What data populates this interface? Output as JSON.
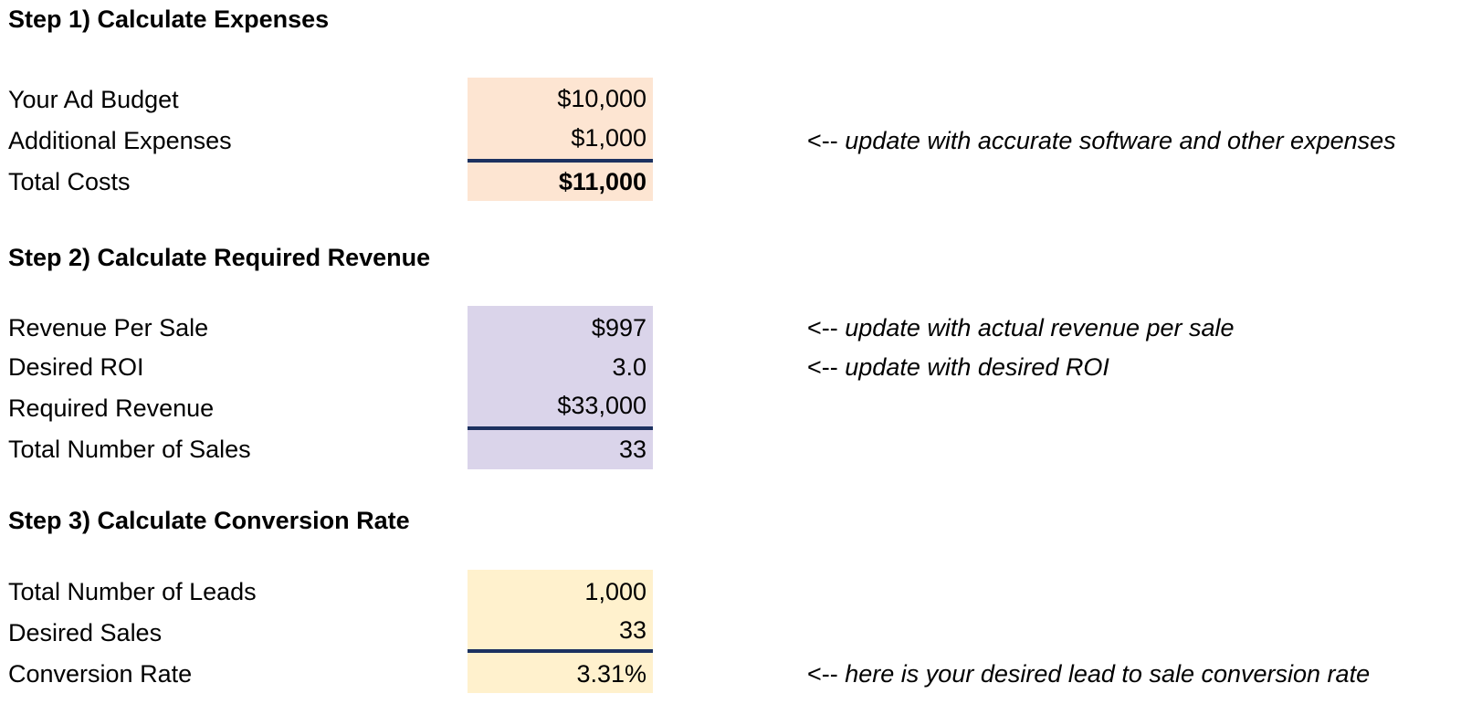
{
  "step1": {
    "heading": "Step 1) Calculate Expenses",
    "rows": [
      {
        "label": "Your Ad Budget",
        "value": "$10,000"
      },
      {
        "label": "Additional Expenses",
        "value": "$1,000"
      },
      {
        "label": "Total Costs",
        "value": "$11,000"
      }
    ],
    "note_additional": {
      "arrow": "<--",
      "text": "update with accurate software and other expenses"
    }
  },
  "step2": {
    "heading": "Step 2) Calculate Required Revenue",
    "rows": [
      {
        "label": "Revenue Per Sale",
        "value": "$997"
      },
      {
        "label": "Desired ROI",
        "value": "3.0"
      },
      {
        "label": "Required Revenue",
        "value": "$33,000"
      },
      {
        "label": "Total Number of Sales",
        "value": "33"
      }
    ],
    "note_revenue": {
      "arrow": "<--",
      "text": "update with actual revenue per sale"
    },
    "note_roi": {
      "arrow": "<--",
      "text": "update with desired ROI"
    }
  },
  "step3": {
    "heading": "Step 3) Calculate Conversion Rate",
    "rows": [
      {
        "label": "Total Number of Leads",
        "value": "1,000"
      },
      {
        "label": "Desired Sales",
        "value": "33"
      },
      {
        "label": "Conversion Rate",
        "value": "3.31%"
      }
    ],
    "note_conversion": {
      "arrow": "<--",
      "text": "here is your desired lead to sale conversion rate"
    }
  },
  "colors": {
    "step1_fill": "#fde5d2",
    "step2_fill": "#dad4ea",
    "step3_fill": "#fff1cd",
    "total_rule": "#1c3160"
  }
}
